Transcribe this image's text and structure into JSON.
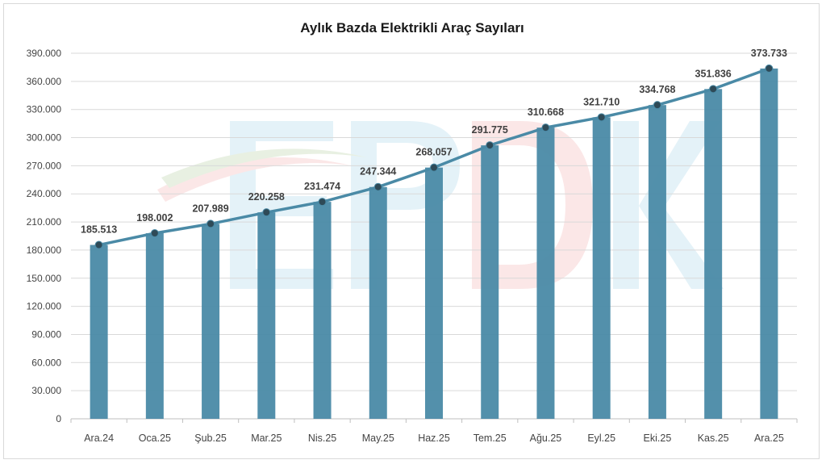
{
  "chart_data": {
    "type": "bar",
    "title": "Aylık Bazda Elektrikli Araç Sayıları",
    "xlabel": "",
    "ylabel": "",
    "categories": [
      "Ara.24",
      "Oca.25",
      "Şub.25",
      "Mar.25",
      "Nis.25",
      "May.25",
      "Haz.25",
      "Tem.25",
      "Ağu.25",
      "Eyl.25",
      "Eki.25",
      "Kas.25",
      "Ara.25"
    ],
    "values": [
      185513,
      198002,
      207989,
      220258,
      231474,
      247344,
      268057,
      291775,
      310668,
      321710,
      334768,
      351836,
      373733
    ],
    "value_labels": [
      "185.513",
      "198.002",
      "207.989",
      "220.258",
      "231.474",
      "247.344",
      "268.057",
      "291.775",
      "310.668",
      "321.710",
      "334.768",
      "351.836",
      "373.733"
    ],
    "overlay": "line-with-markers",
    "y_ticks": [
      0,
      30000,
      60000,
      90000,
      120000,
      150000,
      180000,
      210000,
      240000,
      270000,
      300000,
      330000,
      360000,
      390000
    ],
    "y_tick_labels": [
      "0",
      "30.000",
      "60.000",
      "90.000",
      "120.000",
      "150.000",
      "180.000",
      "210.000",
      "240.000",
      "270.000",
      "300.000",
      "330.000",
      "360.000",
      "390.000"
    ],
    "ylim": [
      0,
      390000
    ],
    "grid": true,
    "legend": "none",
    "colors": {
      "bar": "#4a8aa6",
      "line": "#4a8aa6",
      "marker": "#2e4a57",
      "grid": "#d9d9d9",
      "watermark_blue": "#e4f2f8",
      "watermark_red": "#fbe7e7"
    },
    "watermark_logo": "EPDK"
  }
}
